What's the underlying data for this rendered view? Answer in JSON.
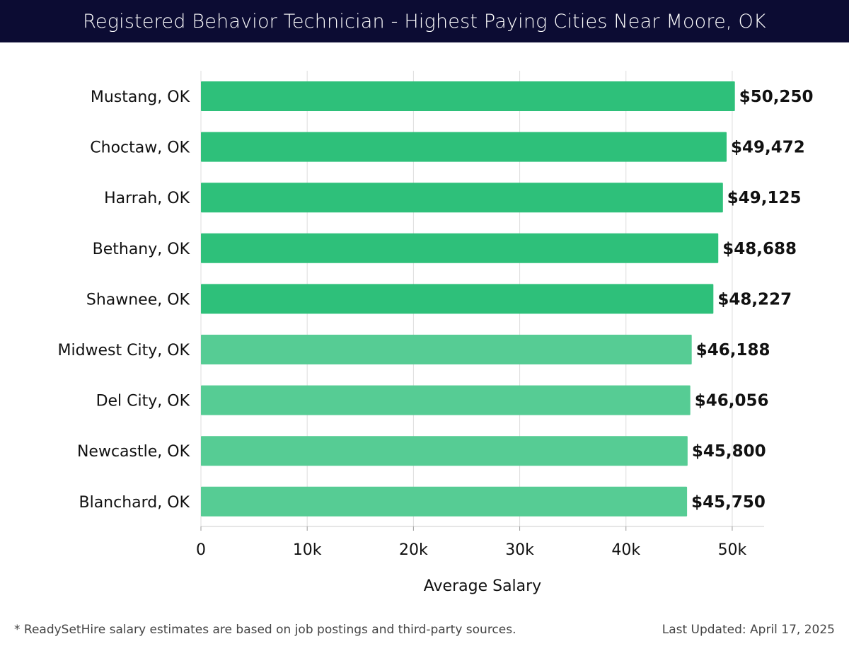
{
  "header": {
    "title": "Registered Behavior Technician - Highest Paying Cities Near Moore, OK"
  },
  "footer": {
    "note": "* ReadySetHire salary estimates are based on job postings and third-party sources.",
    "updated": "Last Updated: April 17, 2025"
  },
  "colors": {
    "header_bg": "#0c0c33",
    "bar_dark": "#2ec07a",
    "bar_light": "#56cc94",
    "grid": "#dddddd"
  },
  "chart_data": {
    "type": "bar",
    "orientation": "horizontal",
    "title": "Registered Behavior Technician - Highest Paying Cities Near Moore, OK",
    "xlabel": "Average Salary",
    "ylabel": "",
    "xlim": [
      0,
      53000
    ],
    "grid": true,
    "x_ticks": [
      0,
      10000,
      20000,
      30000,
      40000,
      50000
    ],
    "x_tick_labels": [
      "0",
      "10k",
      "20k",
      "30k",
      "40k",
      "50k"
    ],
    "categories": [
      "Mustang, OK",
      "Choctaw, OK",
      "Harrah, OK",
      "Bethany, OK",
      "Shawnee, OK",
      "Midwest City, OK",
      "Del City, OK",
      "Newcastle, OK",
      "Blanchard, OK"
    ],
    "values": [
      50250,
      49472,
      49125,
      48688,
      48227,
      46188,
      46056,
      45800,
      45750
    ],
    "value_labels": [
      "$50,250",
      "$49,472",
      "$49,125",
      "$48,688",
      "$48,227",
      "$46,188",
      "$46,056",
      "$45,800",
      "$45,750"
    ],
    "bar_shades": [
      "dark",
      "dark",
      "dark",
      "dark",
      "dark",
      "light",
      "light",
      "light",
      "light"
    ]
  }
}
